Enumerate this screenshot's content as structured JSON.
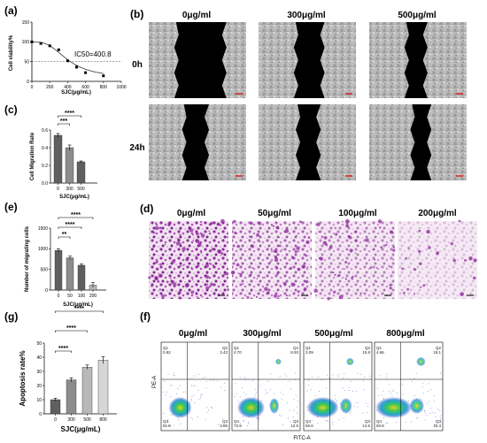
{
  "panel_labels": {
    "a": "(a)",
    "b": "(b)",
    "c": "(c)",
    "d": "(d)",
    "e": "(e)",
    "f": "(f)",
    "g": "(g)"
  },
  "scratch": {
    "columns": [
      "0μg/ml",
      "300μg/ml",
      "500μg/ml"
    ],
    "rows": [
      "0h",
      "24h"
    ]
  },
  "transwell": {
    "columns": [
      "0μg/ml",
      "50μg/ml",
      "100μg/ml",
      "200μg/ml"
    ]
  },
  "flow": {
    "columns": [
      "0μg/ml",
      "300μg/ml",
      "500μg/ml",
      "800μg/ml"
    ],
    "xlabel": "FITC-A",
    "ylabel": "PE-A",
    "quadrant_names": [
      "Q1",
      "Q2",
      "Q3",
      "Q4"
    ],
    "quadrants": [
      {
        "q1": "0.92",
        "q2": "3.42",
        "q3": "3.85",
        "q4": "91.8"
      },
      {
        "q1": "4.70",
        "q2": "8.93",
        "q3": "12.5",
        "q4": "73.9"
      },
      {
        "q1": "3.09",
        "q2": "15.8",
        "q3": "14.5",
        "q4": "66.6"
      },
      {
        "q1": "4.66",
        "q2": "19.1",
        "q3": "15.4",
        "q4": "60.8"
      }
    ]
  },
  "colors": {
    "bar_dark": "#5f5f5f",
    "bar_mid": "#8c8c8c",
    "bar_light": "#b8b8b8",
    "bar_lighter": "#d6d6d6",
    "stain": "#8e2a9c",
    "flow_low": "#2a3ab0",
    "flow_high": "#e8d020"
  },
  "chart_data": [
    {
      "panel": "a",
      "type": "scatter",
      "ylabel": "Cell viability%",
      "xlabel": "SJC(μg/mL)",
      "annotation": "IC50=400.8",
      "xlim": [
        0,
        1000
      ],
      "ylim": [
        0,
        150
      ],
      "xticks": [
        "0",
        "200",
        "400",
        "600",
        "800",
        "1000"
      ],
      "yticks": [
        "0",
        "50",
        "100",
        "150"
      ],
      "x": [
        0,
        100,
        200,
        300,
        400,
        500,
        600,
        800
      ],
      "y": [
        100,
        96,
        90,
        80,
        52,
        36,
        22,
        14
      ],
      "reference_line": 50
    },
    {
      "panel": "c",
      "type": "bar",
      "ylabel": "Cell Migration Rate",
      "xlabel": "SJC(μg/mL)",
      "categories": [
        "0",
        "300",
        "500"
      ],
      "values": [
        0.54,
        0.4,
        0.24
      ],
      "errors": [
        0.02,
        0.03,
        0.01
      ],
      "ylim": [
        0,
        0.6
      ],
      "yticks": [
        "0.0",
        "0.2",
        "0.4",
        "0.6"
      ],
      "significance": [
        {
          "from": 0,
          "to": 1,
          "label": "***"
        },
        {
          "from": 0,
          "to": 2,
          "label": "****"
        }
      ]
    },
    {
      "panel": "e",
      "type": "bar",
      "ylabel": "Number of migrating cells",
      "xlabel": "SJC(μg/mL)",
      "categories": [
        "0",
        "50",
        "100",
        "200"
      ],
      "values": [
        960,
        780,
        600,
        120
      ],
      "errors": [
        40,
        40,
        30,
        60
      ],
      "ylim": [
        0,
        1500
      ],
      "yticks": [
        "0",
        "500",
        "1000",
        "1500"
      ],
      "significance": [
        {
          "from": 0,
          "to": 1,
          "label": "**"
        },
        {
          "from": 0,
          "to": 2,
          "label": "****"
        },
        {
          "from": 0,
          "to": 3,
          "label": "****"
        }
      ]
    },
    {
      "panel": "g",
      "type": "bar",
      "ylabel": "Apoptosis rate%",
      "xlabel": "SJC(μg/mL)",
      "categories": [
        "0",
        "300",
        "500",
        "800"
      ],
      "values": [
        10,
        24,
        33,
        38
      ],
      "errors": [
        1,
        1.5,
        1.5,
        2.5
      ],
      "ylim": [
        0,
        50
      ],
      "yticks": [
        "0",
        "10",
        "20",
        "30",
        "40",
        "50"
      ],
      "significance": [
        {
          "from": 0,
          "to": 1,
          "label": "****"
        },
        {
          "from": 0,
          "to": 2,
          "label": "****"
        },
        {
          "from": 0,
          "to": 3,
          "label": "****"
        }
      ]
    }
  ]
}
